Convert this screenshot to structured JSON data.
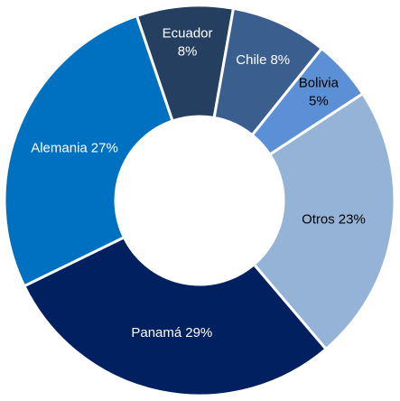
{
  "chart_data": {
    "type": "donut",
    "categories": [
      "Ecuador",
      "Chile",
      "Bolivia",
      "Otros",
      "Panamá",
      "Alemania"
    ],
    "values": [
      8,
      8,
      5,
      23,
      29,
      27
    ],
    "value_labels": [
      "8%",
      "8%",
      "5%",
      "23%",
      "29%",
      "27%"
    ],
    "colors": [
      "#243f60",
      "#3a5f8f",
      "#5b8fd6",
      "#95b3d7",
      "#002060",
      "#0070c0"
    ],
    "label_colors": [
      "#ffffff",
      "#ffffff",
      "#000000",
      "#000000",
      "#ffffff",
      "#ffffff"
    ]
  }
}
